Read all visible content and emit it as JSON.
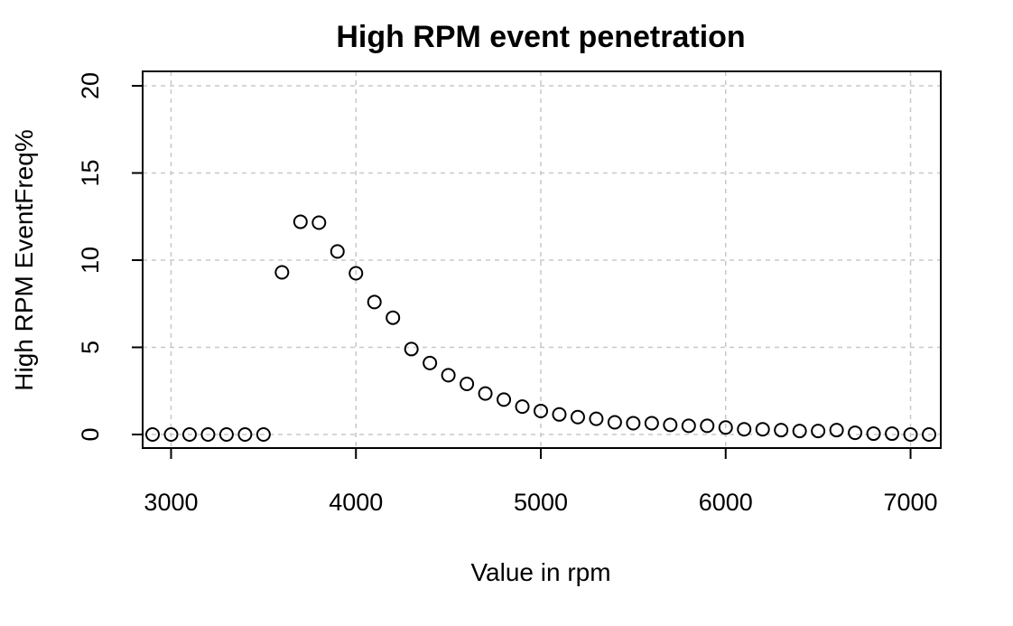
{
  "chart_data": {
    "type": "scatter",
    "title": "High RPM event penetration",
    "xlabel": "Value in rpm",
    "ylabel": "High RPM EventFreq%",
    "xlim": [
      2900,
      7100
    ],
    "ylim": [
      0,
      20
    ],
    "x_ticks": [
      3000,
      4000,
      5000,
      6000,
      7000
    ],
    "y_ticks": [
      0,
      5,
      10,
      15,
      20
    ],
    "grid": true,
    "marker": "open-circle",
    "series": [
      {
        "x": [
          2900,
          3000,
          3100,
          3200,
          3300,
          3400,
          3500,
          3600,
          3700,
          3800,
          3900,
          4000,
          4100,
          4200,
          4300,
          4400,
          4500,
          4600,
          4700,
          4800,
          4900,
          5000,
          5100,
          5200,
          5300,
          5400,
          5500,
          5600,
          5700,
          5800,
          5900,
          6000,
          6100,
          6200,
          6300,
          6400,
          6500,
          6600,
          6700,
          6800,
          6900,
          7000,
          7100
        ],
        "y": [
          0,
          0,
          0,
          0,
          0,
          0,
          0,
          9.3,
          12.2,
          12.15,
          10.5,
          9.25,
          7.6,
          6.7,
          4.9,
          4.1,
          3.4,
          2.9,
          2.35,
          2.0,
          1.6,
          1.35,
          1.15,
          1.0,
          0.9,
          0.7,
          0.65,
          0.65,
          0.55,
          0.5,
          0.5,
          0.4,
          0.3,
          0.3,
          0.25,
          0.2,
          0.2,
          0.25,
          0.1,
          0.05,
          0.05,
          0.0,
          0.0
        ]
      }
    ]
  }
}
